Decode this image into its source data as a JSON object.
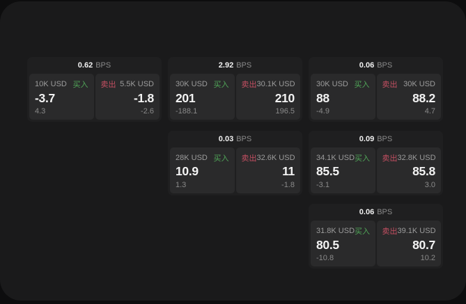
{
  "labels": {
    "bps": "BPS",
    "buy": "买入",
    "sell": "卖出"
  },
  "colors": {
    "page_bg": "#0d0d0e",
    "panel_bg": "#1a1a1b",
    "card_bg": "#1f1f20",
    "subpanel_bg": "#2a2a2b",
    "buy_green": "#50a558",
    "sell_red": "#c44f62",
    "text_primary": "#f2f2f2",
    "text_secondary": "#9c9c9c"
  },
  "cards": [
    {
      "bps": "0.62",
      "row": 1,
      "col": 1,
      "buy": {
        "amount": "10K USD",
        "value": "-3.7",
        "delta": "4.3"
      },
      "sell": {
        "amount": "5.5K USD",
        "value": "-1.8",
        "delta": "-2.6"
      }
    },
    {
      "bps": "2.92",
      "row": 1,
      "col": 2,
      "buy": {
        "amount": "30K USD",
        "value": "201",
        "delta": "-188.1"
      },
      "sell": {
        "amount": "30.1K USD",
        "value": "210",
        "delta": "196.5"
      }
    },
    {
      "bps": "0.06",
      "row": 1,
      "col": 3,
      "buy": {
        "amount": "30K USD",
        "value": "88",
        "delta": "-4.9"
      },
      "sell": {
        "amount": "30K USD",
        "value": "88.2",
        "delta": "4.7"
      }
    },
    {
      "bps": "0.03",
      "row": 2,
      "col": 2,
      "buy": {
        "amount": "28K USD",
        "value": "10.9",
        "delta": "1.3"
      },
      "sell": {
        "amount": "32.6K USD",
        "value": "11",
        "delta": "-1.8"
      }
    },
    {
      "bps": "0.09",
      "row": 2,
      "col": 3,
      "buy": {
        "amount": "34.1K USD",
        "value": "85.5",
        "delta": "-3.1"
      },
      "sell": {
        "amount": "32.8K USD",
        "value": "85.8",
        "delta": "3.0"
      }
    },
    {
      "bps": "0.06",
      "row": 3,
      "col": 3,
      "buy": {
        "amount": "31.8K USD",
        "value": "80.5",
        "delta": "-10.8"
      },
      "sell": {
        "amount": "39.1K USD",
        "value": "80.7",
        "delta": "10.2"
      }
    }
  ]
}
